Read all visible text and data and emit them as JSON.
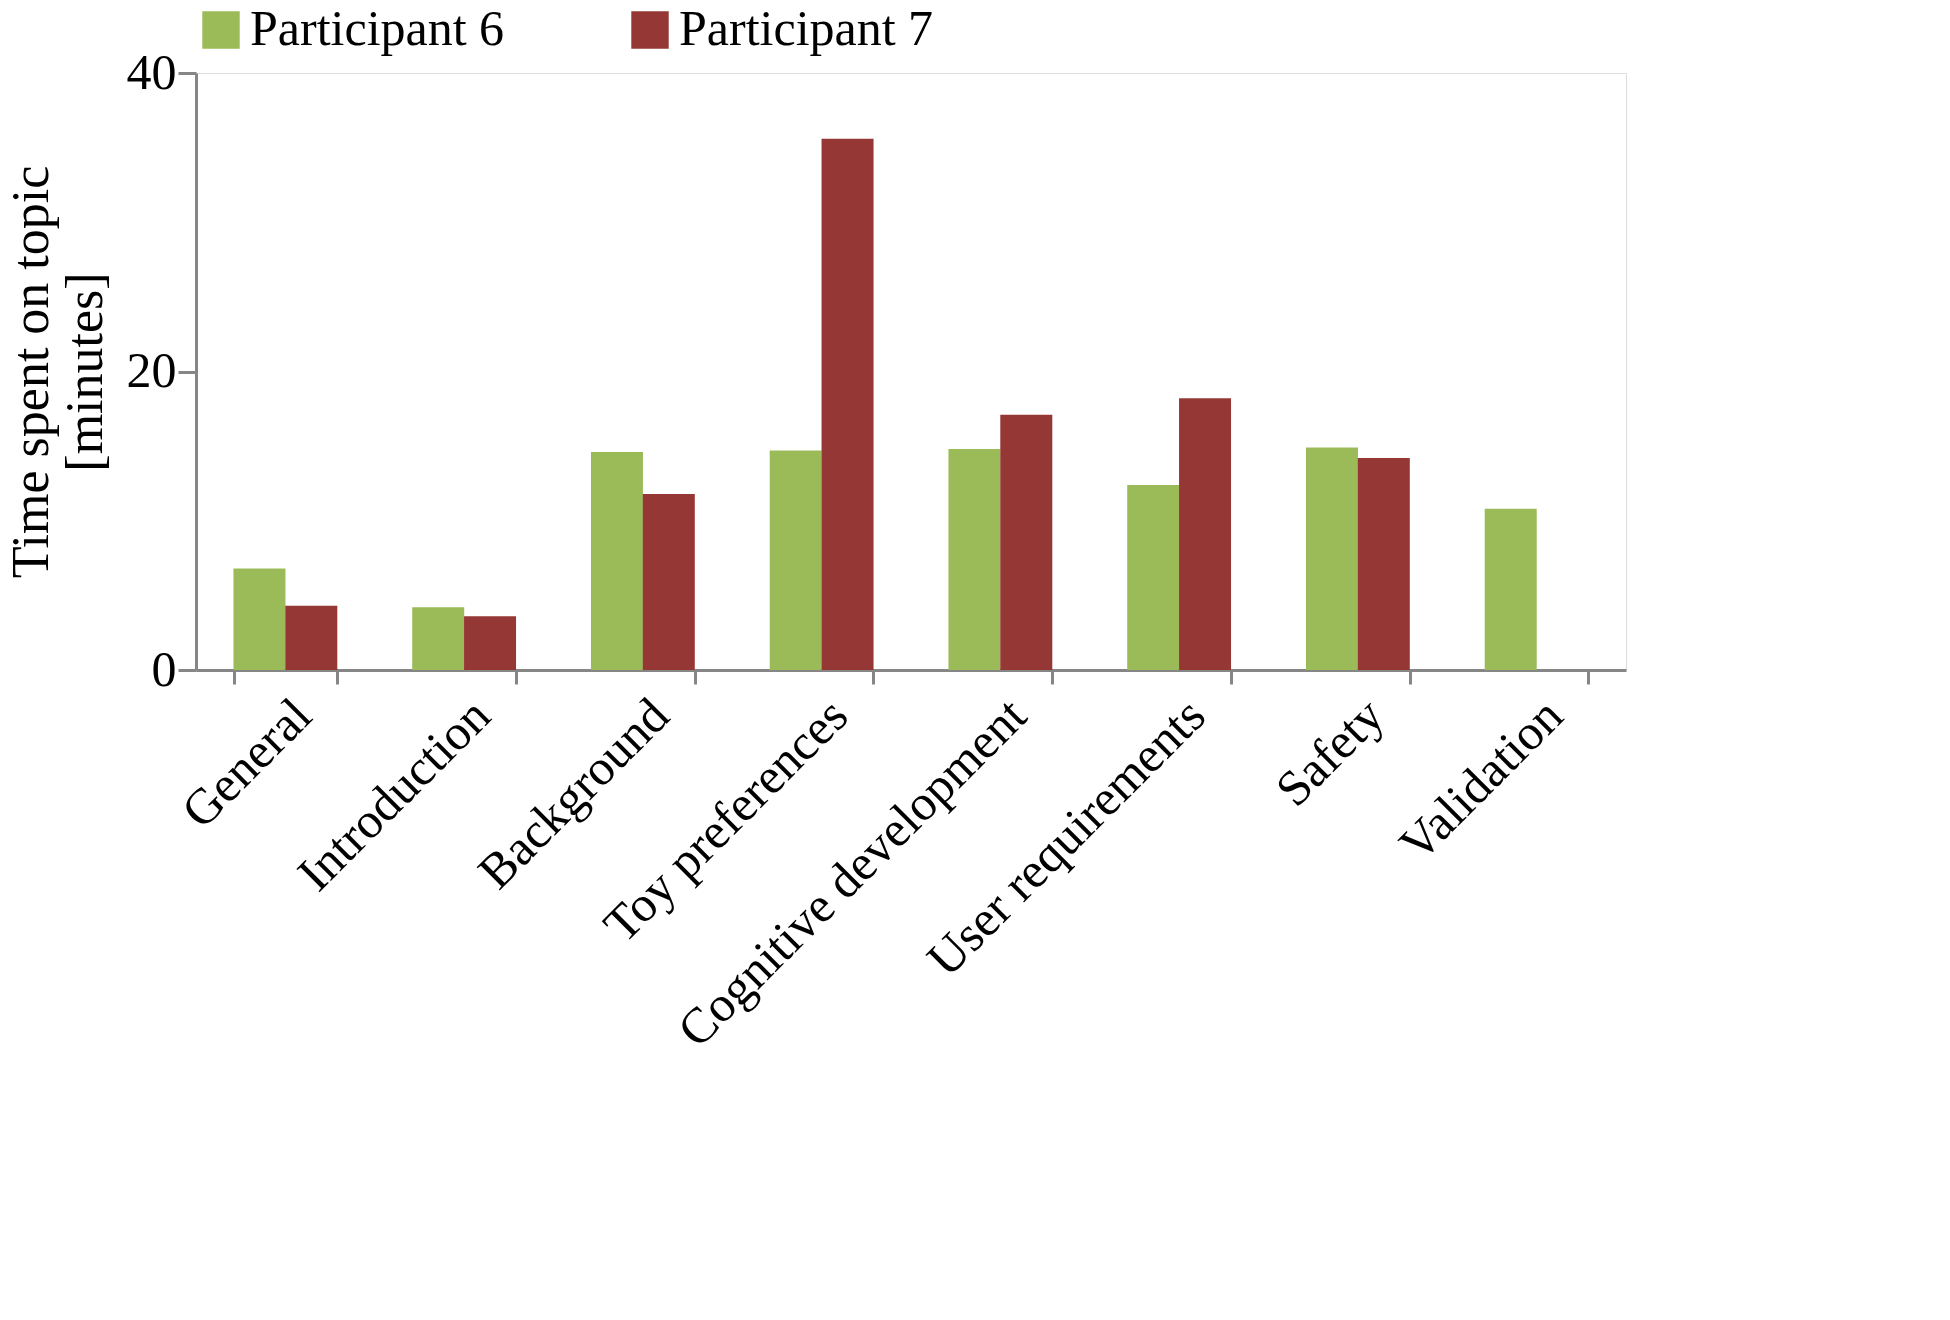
{
  "chart_data": {
    "type": "bar",
    "ylabel": "Time spent on topic\n[minutes]",
    "categories": [
      "General",
      "Introduction",
      "Background",
      "Toy preferences",
      "Cognitive development",
      "User requirements",
      "Safety",
      "Validation"
    ],
    "series": [
      {
        "name": "Participant 6",
        "color": "#9bbb59",
        "values": [
          6.8,
          4.2,
          14.6,
          14.7,
          14.8,
          12.4,
          14.9,
          10.8
        ]
      },
      {
        "name": "Participant 7",
        "color": "#953735",
        "values": [
          4.3,
          3.6,
          11.8,
          35.6,
          17.1,
          18.2,
          14.2,
          null
        ]
      }
    ],
    "ylim": [
      0,
      40
    ],
    "yticks": [
      0,
      20,
      40
    ],
    "grid": false,
    "legend": "top"
  }
}
